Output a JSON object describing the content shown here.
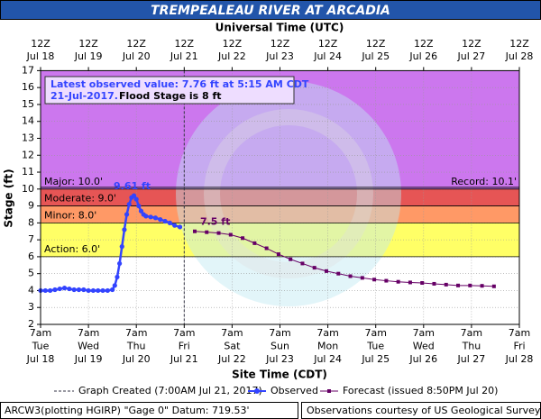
{
  "chart_data": {
    "type": "line",
    "title": "TREMPEALEAU RIVER AT ARCADIA",
    "top_axis_label": "Universal Time (UTC)",
    "x_label": "Site Time (CDT)",
    "y_label": "Stage (ft)",
    "xlim": [
      0,
      10
    ],
    "ylim": [
      2,
      17
    ],
    "yticks": [
      2,
      3,
      4,
      5,
      6,
      7,
      8,
      9,
      10,
      11,
      12,
      13,
      14,
      15,
      16,
      17
    ],
    "xticks": [
      {
        "value": 0,
        "label": [
          "7am",
          "Tue",
          "Jul 18"
        ]
      },
      {
        "value": 1,
        "label": [
          "7am",
          "Wed",
          "Jul 19"
        ]
      },
      {
        "value": 2,
        "label": [
          "7am",
          "Thu",
          "Jul 20"
        ]
      },
      {
        "value": 3,
        "label": [
          "7am",
          "Fri",
          "Jul 21"
        ]
      },
      {
        "value": 4,
        "label": [
          "7am",
          "Sat",
          "Jul 22"
        ]
      },
      {
        "value": 5,
        "label": [
          "7am",
          "Sun",
          "Jul 23"
        ]
      },
      {
        "value": 6,
        "label": [
          "7am",
          "Mon",
          "Jul 24"
        ]
      },
      {
        "value": 7,
        "label": [
          "7am",
          "Tue",
          "Jul 25"
        ]
      },
      {
        "value": 8,
        "label": [
          "7am",
          "Wed",
          "Jul 26"
        ]
      },
      {
        "value": 9,
        "label": [
          "7am",
          "Thu",
          "Jul 27"
        ]
      },
      {
        "value": 10,
        "label": [
          "7am",
          "Fri",
          "Jul 28"
        ]
      }
    ],
    "x2ticks": [
      {
        "value": 0,
        "label": [
          "12Z",
          "Jul 18"
        ]
      },
      {
        "value": 1,
        "label": [
          "12Z",
          "Jul 19"
        ]
      },
      {
        "value": 2,
        "label": [
          "12Z",
          "Jul 20"
        ]
      },
      {
        "value": 3,
        "label": [
          "12Z",
          "Jul 21"
        ]
      },
      {
        "value": 4,
        "label": [
          "12Z",
          "Jul 22"
        ]
      },
      {
        "value": 5,
        "label": [
          "12Z",
          "Jul 23"
        ]
      },
      {
        "value": 6,
        "label": [
          "12Z",
          "Jul 24"
        ]
      },
      {
        "value": 7,
        "label": [
          "12Z",
          "Jul 25"
        ]
      },
      {
        "value": 8,
        "label": [
          "12Z",
          "Jul 26"
        ]
      },
      {
        "value": 9,
        "label": [
          "12Z",
          "Jul 27"
        ]
      },
      {
        "value": 10,
        "label": [
          "12Z",
          "Jul 28"
        ]
      }
    ],
    "grid": true,
    "flood_categories": [
      {
        "label": "Major: 10.0'",
        "value": 10,
        "color": "#cc77ee"
      },
      {
        "label": "Moderate: 9.0'",
        "value": 9,
        "color": "#e65555"
      },
      {
        "label": "Minor: 8.0'",
        "value": 8,
        "color": "#ff9966"
      },
      {
        "label": "Action: 6.0'",
        "value": 6,
        "color": "#ffff66"
      }
    ],
    "record": {
      "label": "Record: 10.1'",
      "value": 10.1
    },
    "graph_created": {
      "x": 3,
      "label": "Graph Created (7:00AM Jul 21, 2017)"
    },
    "info_box": {
      "observed": "Latest observed value: 7.76 ft at 5:15 AM CDT",
      "date": "21-Jul-2017.",
      "flood_stage": "Flood Stage is 8 ft"
    },
    "series": [
      {
        "name": "Observed",
        "color": "#3344ff",
        "marker": "circle",
        "x": [
          0,
          0.1,
          0.2,
          0.3,
          0.4,
          0.5,
          0.6,
          0.7,
          0.8,
          0.9,
          1.0,
          1.1,
          1.2,
          1.3,
          1.4,
          1.5,
          1.55,
          1.6,
          1.65,
          1.7,
          1.75,
          1.8,
          1.85,
          1.9,
          1.95,
          2.0,
          2.05,
          2.1,
          2.15,
          2.2,
          2.3,
          2.4,
          2.5,
          2.6,
          2.7,
          2.8,
          2.91
        ],
        "values": [
          4.0,
          4.0,
          4.0,
          4.05,
          4.1,
          4.15,
          4.1,
          4.05,
          4.05,
          4.05,
          4.0,
          4.0,
          4.0,
          4.0,
          4.0,
          4.05,
          4.3,
          4.8,
          5.6,
          6.6,
          7.6,
          8.5,
          9.1,
          9.5,
          9.61,
          9.4,
          9.0,
          8.7,
          8.5,
          8.4,
          8.35,
          8.3,
          8.2,
          8.1,
          8.0,
          7.85,
          7.76
        ],
        "value_labels": [
          null,
          null,
          null,
          null,
          null,
          null,
          null,
          null,
          null,
          null,
          null,
          null,
          null,
          null,
          null,
          null,
          null,
          null,
          null,
          null,
          null,
          null,
          null,
          null,
          "9.61 ft",
          null,
          null,
          null,
          null,
          null,
          null,
          null,
          null,
          null,
          null,
          null,
          null
        ]
      },
      {
        "name": "Forecast (issued 8:50PM Jul 20)",
        "color": "#660066",
        "marker": "square",
        "x": [
          3.22,
          3.47,
          3.72,
          3.97,
          4.22,
          4.47,
          4.72,
          4.97,
          5.22,
          5.47,
          5.72,
          5.97,
          6.22,
          6.47,
          6.72,
          6.97,
          7.22,
          7.47,
          7.72,
          7.97,
          8.22,
          8.47,
          8.72,
          8.97,
          9.22,
          9.47
        ],
        "values": [
          7.5,
          7.45,
          7.4,
          7.3,
          7.1,
          6.8,
          6.5,
          6.15,
          5.85,
          5.6,
          5.35,
          5.15,
          5.0,
          4.85,
          4.75,
          4.65,
          4.58,
          4.52,
          4.48,
          4.45,
          4.4,
          4.35,
          4.3,
          4.3,
          4.28,
          4.25
        ],
        "value_labels": [
          "7.5 ft",
          null,
          null,
          null,
          null,
          null,
          null,
          null,
          null,
          null,
          null,
          null,
          null,
          null,
          null,
          null,
          null,
          null,
          null,
          null,
          null,
          null,
          null,
          null,
          null,
          null
        ]
      }
    ],
    "footer_left": "ARCW3(plotting HGIRP) \"Gage 0\" Datum: 719.53'",
    "footer_right": "Observations courtesy of US Geological Survey"
  }
}
